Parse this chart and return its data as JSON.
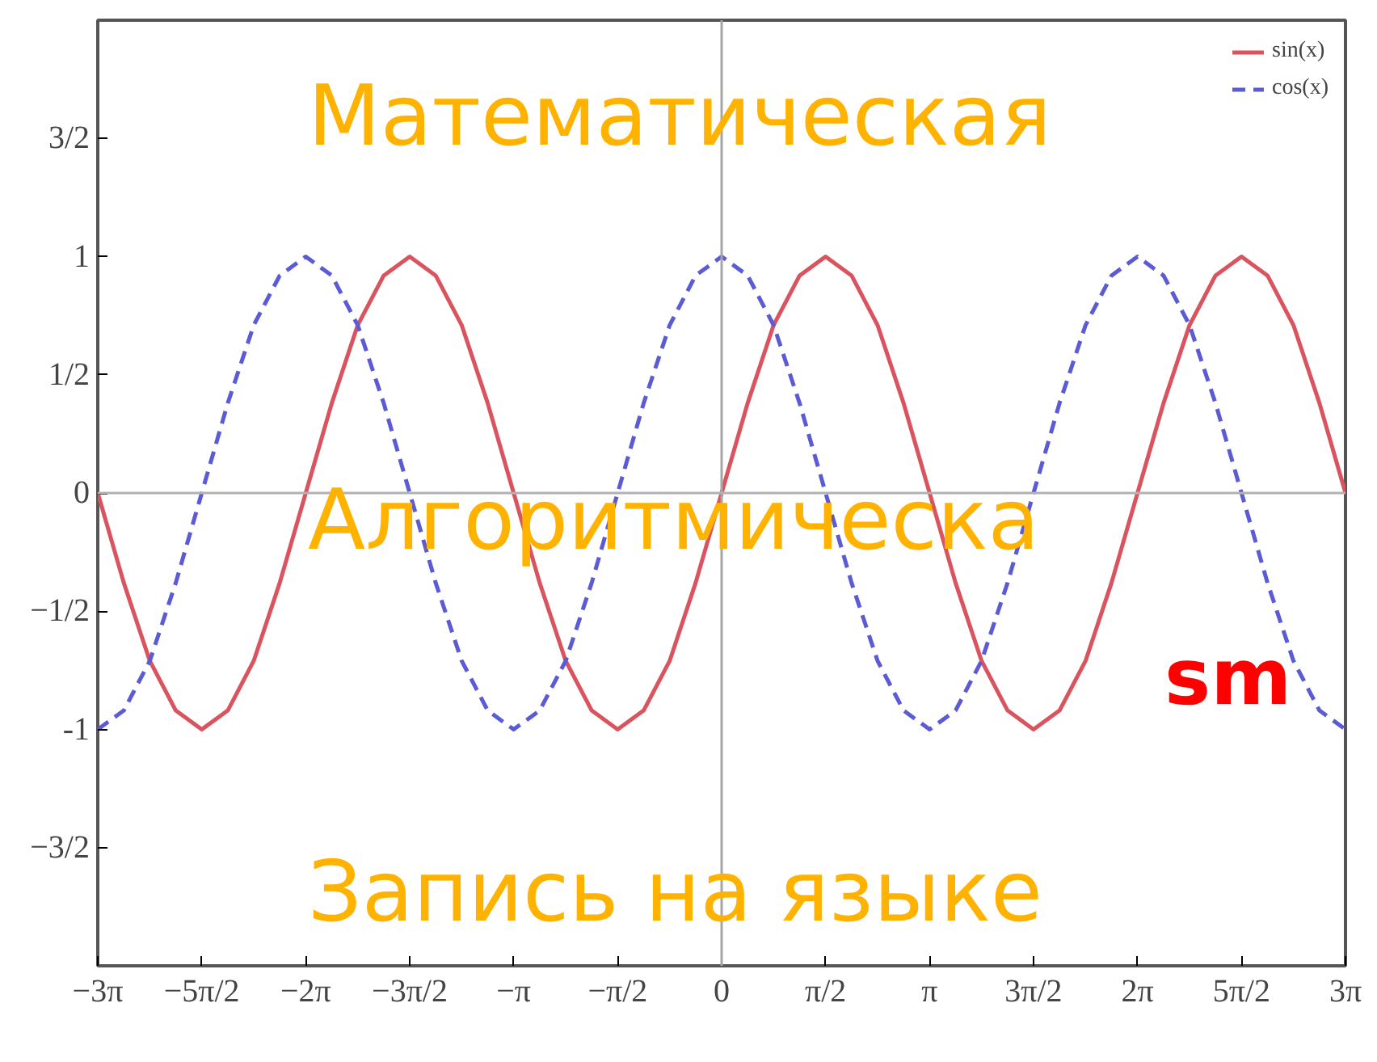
{
  "chart_data": {
    "type": "line",
    "x": [
      -9.425,
      -9.032,
      -8.639,
      -8.247,
      -7.854,
      -7.461,
      -7.069,
      -6.676,
      -6.283,
      -5.89,
      -5.498,
      -5.105,
      -4.712,
      -4.32,
      -3.927,
      -3.534,
      -3.142,
      -2.749,
      -2.356,
      -1.963,
      -1.571,
      -1.178,
      -0.785,
      -0.393,
      0,
      0.393,
      0.785,
      1.178,
      1.571,
      1.963,
      2.356,
      2.749,
      3.142,
      3.534,
      3.927,
      4.32,
      4.712,
      5.105,
      5.498,
      5.89,
      6.283,
      6.676,
      7.069,
      7.461,
      7.854,
      8.247,
      8.639,
      9.032,
      9.425
    ],
    "series": [
      {
        "name": "sin(x)",
        "color": "#d9545e",
        "line_style": "solid",
        "values": [
          0,
          -0.38,
          -0.71,
          -0.92,
          -1,
          -0.92,
          -0.71,
          -0.38,
          0,
          0.38,
          0.71,
          0.92,
          1,
          0.92,
          0.71,
          0.38,
          0,
          -0.38,
          -0.71,
          -0.92,
          -1,
          -0.92,
          -0.71,
          -0.38,
          0,
          0.38,
          0.71,
          0.92,
          1,
          0.92,
          0.71,
          0.38,
          0,
          -0.38,
          -0.71,
          -0.92,
          -1,
          -0.92,
          -0.71,
          -0.38,
          0,
          0.38,
          0.71,
          0.92,
          1,
          0.92,
          0.71,
          0.38,
          0
        ]
      },
      {
        "name": "cos(x)",
        "color": "#5b5bd6",
        "line_style": "dashed",
        "values": [
          -1,
          -0.92,
          -0.71,
          -0.38,
          0,
          0.38,
          0.71,
          0.92,
          1,
          0.92,
          0.71,
          0.38,
          0,
          -0.38,
          -0.71,
          -0.92,
          -1,
          -0.92,
          -0.71,
          -0.38,
          0,
          0.38,
          0.71,
          0.92,
          1,
          0.92,
          0.71,
          0.38,
          0,
          -0.38,
          -0.71,
          -0.92,
          -1,
          -0.92,
          -0.71,
          -0.38,
          0,
          0.38,
          0.71,
          0.92,
          1,
          0.92,
          0.71,
          0.38,
          0,
          -0.38,
          -0.71,
          -0.92,
          -1
        ]
      }
    ],
    "xlim": [
      -9.425,
      9.425
    ],
    "xticks": [
      {
        "value": -9.425,
        "label": "−3π"
      },
      {
        "value": -7.854,
        "label": "−5π/2"
      },
      {
        "value": -6.283,
        "label": "−2π"
      },
      {
        "value": -4.712,
        "label": "−3π/2"
      },
      {
        "value": -3.142,
        "label": "−π"
      },
      {
        "value": -1.571,
        "label": "−π/2"
      },
      0,
      {
        "value": 1.571,
        "label": "π/2"
      },
      {
        "value": 3.142,
        "label": "π"
      },
      {
        "value": 4.712,
        "label": "3π/2"
      },
      {
        "value": 6.283,
        "label": "2π"
      },
      {
        "value": 7.854,
        "label": "5π/2"
      },
      {
        "value": 9.425,
        "label": "3π"
      }
    ],
    "ylim": [
      -2,
      2
    ],
    "yticks": [
      {
        "value": -1.5,
        "label": "−3/2"
      },
      -1,
      {
        "value": -0.5,
        "label": "−1/2"
      },
      0,
      {
        "value": 0.5,
        "label": "1/2"
      },
      1,
      {
        "value": 1.5,
        "label": "3/2"
      }
    ],
    "ref_lines": [
      {
        "axis": "x",
        "value": 0,
        "color": "#a6a6a6"
      },
      {
        "axis": "y",
        "value": 0,
        "color": "#b2b2b2"
      }
    ],
    "grid": false,
    "legend": "top right",
    "annotations": [
      "Математическая",
      "Алгоритмическа",
      "sm",
      "Запись на языке"
    ]
  }
}
